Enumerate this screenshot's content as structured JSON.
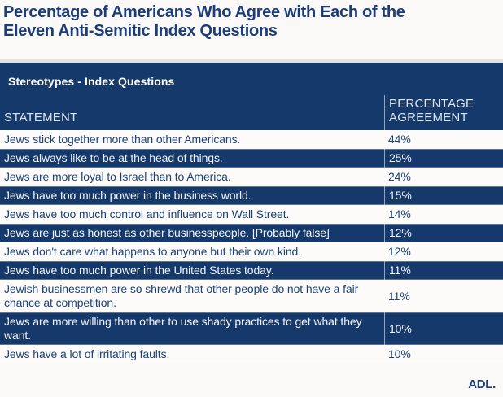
{
  "colors": {
    "navy_header": "#16396B",
    "title_text": "#1C3E78",
    "light_row_bg": "#FCFBF9",
    "light_row_text": "#1C4178",
    "dark_row_text": "#F2F5F9",
    "page_bg": "#FAF9F7"
  },
  "title": {
    "line1": "Percentage of Americans Who Agree with Each of the",
    "line2": "Eleven Anti-Semitic Index Questions"
  },
  "table": {
    "band_title": "Stereotypes - Index Questions",
    "columns": {
      "statement": "STATEMENT",
      "percentage": "PERCENTAGE AGREEMENT"
    },
    "rows": [
      {
        "statement": "Jews stick together more than other Americans.",
        "percentage": "44%"
      },
      {
        "statement": "Jews always like to be at the head of things.",
        "percentage": "25%"
      },
      {
        "statement": "Jews are more loyal to Israel than to America.",
        "percentage": "24%"
      },
      {
        "statement": "Jews have too much power in the business world.",
        "percentage": "15%"
      },
      {
        "statement": "Jews have too much control and influence on Wall Street.",
        "percentage": "14%"
      },
      {
        "statement": "Jews are just as honest as other businesspeople. [Probably false]",
        "percentage": "12%"
      },
      {
        "statement": "Jews don't care what happens to anyone but their own kind.",
        "percentage": "12%"
      },
      {
        "statement": "Jews have too much power in the United States today.",
        "percentage": "11%"
      },
      {
        "statement": "Jewish businessmen are so shrewd that other people do not have a fair chance at competition.",
        "percentage": "11%"
      },
      {
        "statement": "Jews are more willing than other to use shady practices to get what they want.",
        "percentage": "10%"
      },
      {
        "statement": "Jews have a lot of irritating faults.",
        "percentage": "10%"
      }
    ]
  },
  "footer": {
    "logo": "ADL."
  },
  "chart_data": {
    "type": "table",
    "title": "Percentage of Americans Who Agree with Each of the Eleven Anti-Semitic Index Questions",
    "section": "Stereotypes - Index Questions",
    "columns": [
      "STATEMENT",
      "PERCENTAGE AGREEMENT"
    ],
    "categories": [
      "Jews stick together more than other Americans.",
      "Jews always like to be at the head of things.",
      "Jews are more loyal to Israel than to America.",
      "Jews have too much power in the business world.",
      "Jews have too much control and influence on Wall Street.",
      "Jews are just as honest as other businesspeople. [Probably false]",
      "Jews don't care what happens to anyone but their own kind.",
      "Jews have too much power in the United States today.",
      "Jewish businessmen are so shrewd that other people do not have a fair chance at competition.",
      "Jews are more willing than other to use shady practices to get what they want.",
      "Jews have a lot of irritating faults."
    ],
    "values": [
      44,
      25,
      24,
      15,
      14,
      12,
      12,
      11,
      11,
      10,
      10
    ],
    "unit": "%"
  }
}
